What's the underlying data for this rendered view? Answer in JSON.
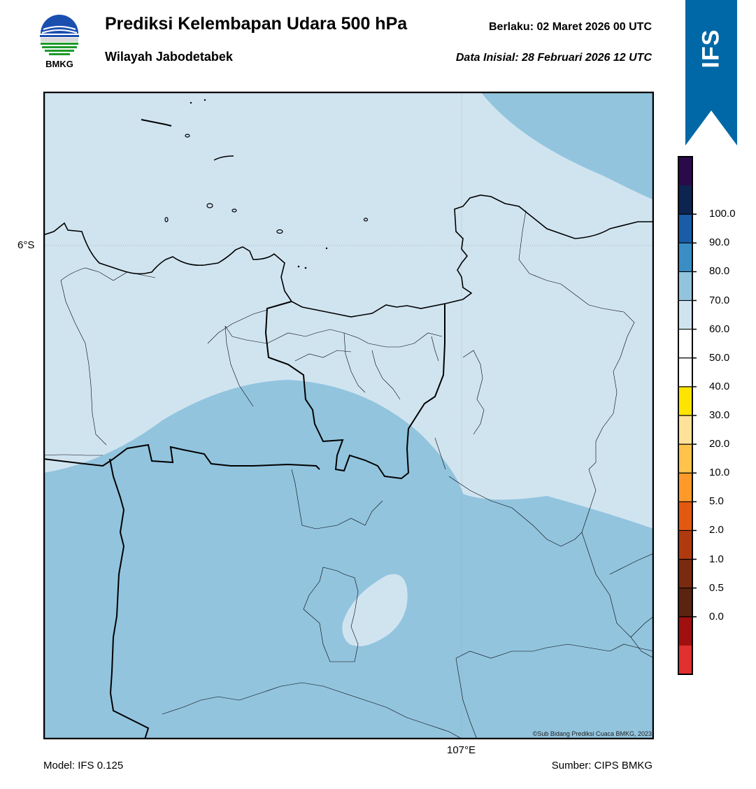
{
  "header": {
    "title": "Prediksi Kelembapan Udara 500 hPa",
    "subtitle": "Wilayah Jabodetabek",
    "valid_time": "Berlaku:  02 Maret 2026 00 UTC",
    "init_time": "Data Inisial:  28 Februari 2026 12 UTC"
  },
  "logo": {
    "text": "BMKG",
    "icon": "bmkg-logo-icon"
  },
  "ribbon": {
    "text": "IFS",
    "color": "#0068a6"
  },
  "map": {
    "lat_label": "6°S",
    "lon_label": "107°E",
    "credit": "©Sub Bidang Prediksi Cuaca BMKG, 2023",
    "fill_colors": {
      "50-60": "#d0e4f0",
      "60-70": "#92c4de"
    }
  },
  "footer": {
    "model": "Model: IFS 0.125",
    "source": "Sumber: CIPS BMKG"
  },
  "colorbar": {
    "ticks": [
      "100.0",
      "90.0",
      "80.0",
      "70.0",
      "60.0",
      "50.0",
      "40.0",
      "30.0",
      "20.0",
      "10.0",
      "5.0",
      "2.0",
      "1.0",
      "0.5",
      "0.0"
    ],
    "colors_top_to_bottom": [
      "#2a0a4a",
      "#0d2450",
      "#1a5ca8",
      "#3a8ec4",
      "#92c4de",
      "#d0e4f0",
      "#ffffff",
      "#ffffff",
      "#ffe400",
      "#ffe29a",
      "#ffc24a",
      "#ff9a2a",
      "#e25a10",
      "#b03a10",
      "#7a2a10",
      "#5a2410",
      "#a01010",
      "#e03030"
    ]
  }
}
